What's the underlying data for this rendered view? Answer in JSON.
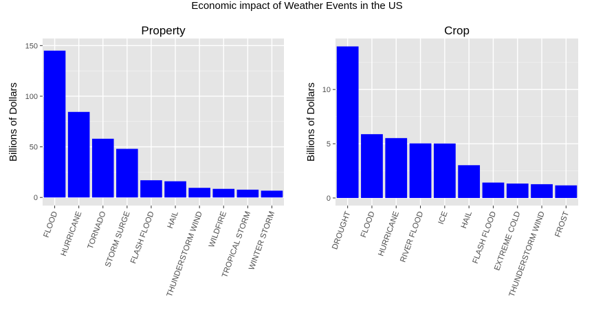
{
  "figure": {
    "title": "Economic impact of Weather Events in the US",
    "bar_color": "#0000ff",
    "panel_background": "#e5e5e5",
    "grid_color": "#ffffff"
  },
  "chart_data": [
    {
      "type": "bar",
      "title": "Property",
      "xlabel": "",
      "ylabel": "Billions of Dollars",
      "ylim": [
        -8,
        157
      ],
      "yticks": [
        0,
        50,
        100,
        150
      ],
      "grid": true,
      "categories": [
        "FLOOD",
        "HURRICANE",
        "TORNADO",
        "STORM SURGE",
        "FLASH FLOOD",
        "HAIL",
        "THUNDERSTORM WIND",
        "WILDFIRE",
        "TROPICAL STORM",
        "WINTER STORM"
      ],
      "values": [
        145,
        84.5,
        58,
        48,
        17,
        16,
        9.5,
        8.5,
        7.7,
        6.7
      ]
    },
    {
      "type": "bar",
      "title": "Crop",
      "xlabel": "",
      "ylabel": "Billions of Dollars",
      "ylim": [
        -0.7,
        14.7
      ],
      "yticks": [
        0,
        5,
        10
      ],
      "grid": true,
      "categories": [
        "DROUGHT",
        "FLOOD",
        "HURRICANE",
        "RIVER FLOOD",
        "ICE",
        "HAIL",
        "FLASH FLOOD",
        "EXTREME COLD",
        "THUNDERSTORM WIND",
        "FROST"
      ],
      "values": [
        13.97,
        5.88,
        5.52,
        5.03,
        5.02,
        3.02,
        1.42,
        1.33,
        1.27,
        1.16
      ]
    }
  ]
}
